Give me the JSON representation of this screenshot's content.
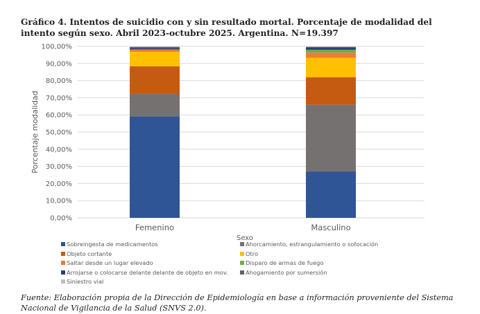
{
  "chart_data": {
    "type": "bar",
    "stacked": true,
    "percent": true,
    "title": "Gráfico 4. Intentos de suicidio con y sin resultado mortal. Porcentaje de modalidad del intento según sexo. Abril 2023-octubre 2025. Argentina. N=19.397",
    "xlabel": "Sexo",
    "ylabel": "Porcentaje modalidad",
    "ylim": [
      0,
      100
    ],
    "yticks": [
      "0,00%",
      "10,00%",
      "20,00%",
      "30,00%",
      "40,00%",
      "50,00%",
      "60,00%",
      "70,00%",
      "80,00%",
      "90,00%",
      "100,00%"
    ],
    "grid": true,
    "legend_position": "bottom",
    "categories": [
      "Femenino",
      "Masculino"
    ],
    "series": [
      {
        "name": "Sobreingesta de medicamentos",
        "color": "#2F5597",
        "values": [
          59.2,
          27.0
        ]
      },
      {
        "name": "Ahorcamiento, estrangulamiento o sofocación",
        "color": "#767171",
        "values": [
          13.0,
          39.0
        ]
      },
      {
        "name": "Objeto cortante",
        "color": "#C55A11",
        "values": [
          16.1,
          16.0
        ]
      },
      {
        "name": "Otro",
        "color": "#FFC000",
        "values": [
          8.5,
          11.3
        ]
      },
      {
        "name": "Saltar desde un lugar elevado",
        "color": "#ED7D31",
        "values": [
          1.2,
          3.0
        ]
      },
      {
        "name": "Disparo de armas de fuego",
        "color": "#70AD47",
        "values": [
          0.2,
          1.7
        ]
      },
      {
        "name": "Arrojarse o colocarse delante delante de objeto en mov.",
        "color": "#264478",
        "values": [
          0.9,
          1.2
        ]
      },
      {
        "name": "Ahogamiento por sumersión",
        "color": "#636363",
        "values": [
          0.5,
          0.5
        ]
      },
      {
        "name": "Siniestro vial",
        "color": "#BFBFBF",
        "values": [
          0.4,
          0.3
        ]
      }
    ]
  },
  "source": "Fuente: Elaboración propia de la Dirección de Epidemiología en base a información proveniente del Sistema Nacional de Vigilancia de la Salud (SNVS 2.0)."
}
